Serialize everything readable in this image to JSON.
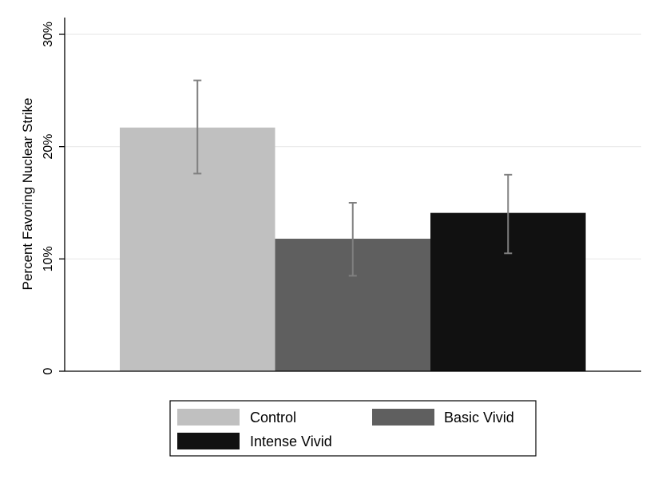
{
  "chart_data": {
    "type": "bar",
    "title": "",
    "xlabel": "",
    "ylabel": "Percent Favoring Nuclear Strike",
    "ylim": [
      0,
      30
    ],
    "yticks": [
      {
        "value": 0,
        "label": "0"
      },
      {
        "value": 10,
        "label": "10%"
      },
      {
        "value": 20,
        "label": "20%"
      },
      {
        "value": 30,
        "label": "30%"
      }
    ],
    "grid": true,
    "legend_position": "bottom",
    "series": [
      {
        "name": "Control",
        "value": 21.7,
        "ci_low": 17.6,
        "ci_high": 25.9,
        "color": "#c0c0c0"
      },
      {
        "name": "Basic Vivid",
        "value": 11.8,
        "ci_low": 8.5,
        "ci_high": 15.0,
        "color": "#5f5f5f"
      },
      {
        "name": "Intense Vivid",
        "value": 14.1,
        "ci_low": 10.5,
        "ci_high": 17.5,
        "color": "#111111"
      }
    ],
    "error_bar_color": "#808080",
    "grid_color": "#eaeaea"
  }
}
